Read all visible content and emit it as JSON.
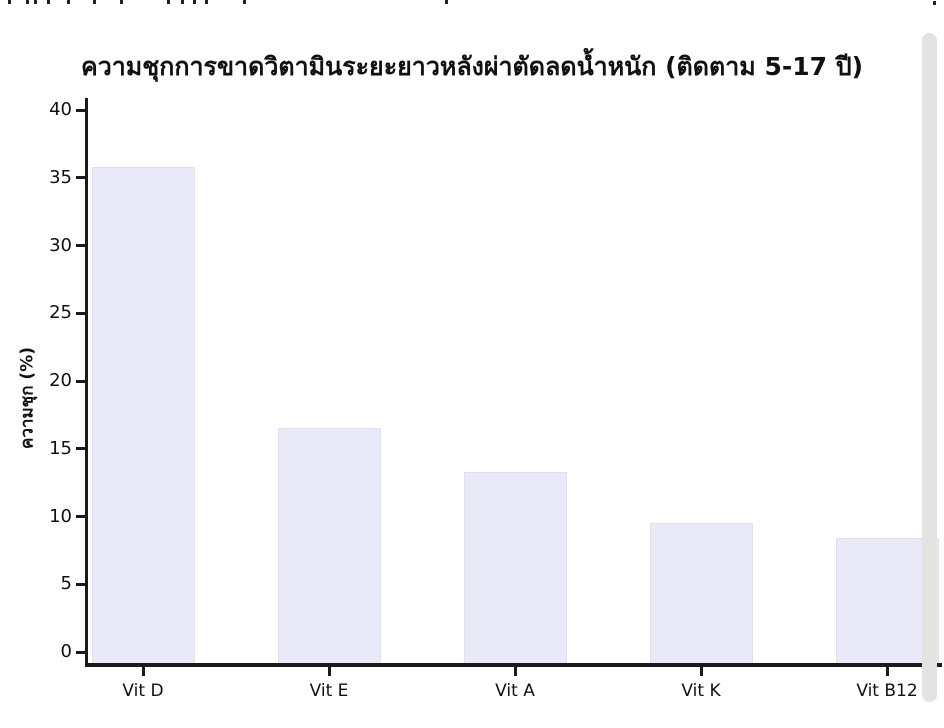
{
  "page": {
    "background": "#ffffff"
  },
  "scrollbar": {
    "color": "#e3e3e1"
  },
  "chart_data": {
    "type": "bar",
    "title": "ความชุกการขาดวิตามินระยะยาวหลังผ่าตัดลดน้ำหนัก (ติดตาม 5-17 ปี)",
    "xlabel": "",
    "ylabel": "ความชุก (%)",
    "categories": [
      "Vit D",
      "Vit E",
      "Vit A",
      "Vit K",
      "Vit B12"
    ],
    "values": [
      35.8,
      16.5,
      13.3,
      9.5,
      8.4
    ],
    "ylim": [
      0,
      40
    ],
    "yticks": [
      0,
      5,
      10,
      15,
      20,
      25,
      30,
      35,
      40
    ],
    "grid": false,
    "legend": false,
    "bar_color": "#e9e9f8",
    "bar_edge_color": "#e0e0f2",
    "axis_color": "#1a1a1a"
  }
}
